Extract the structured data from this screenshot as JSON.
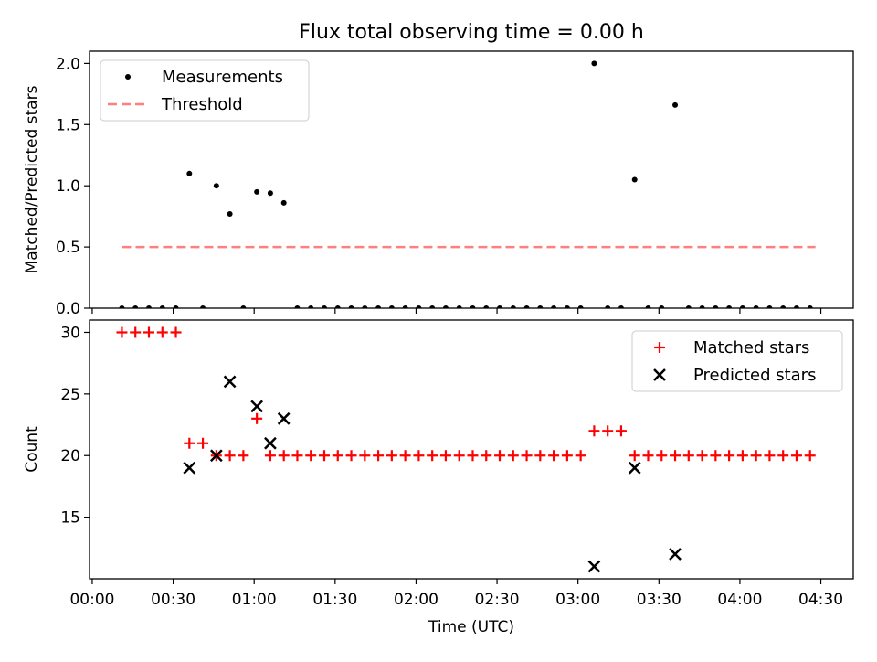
{
  "title": "Flux total observing time = 0.00 h",
  "xlabel": "Time (UTC)",
  "xticks": [
    {
      "label": "00:00",
      "minutes": 0
    },
    {
      "label": "00:30",
      "minutes": 30
    },
    {
      "label": "01:00",
      "minutes": 60
    },
    {
      "label": "01:30",
      "minutes": 90
    },
    {
      "label": "02:00",
      "minutes": 120
    },
    {
      "label": "02:30",
      "minutes": 150
    },
    {
      "label": "03:00",
      "minutes": 180
    },
    {
      "label": "03:30",
      "minutes": 210
    },
    {
      "label": "04:00",
      "minutes": 240
    },
    {
      "label": "04:30",
      "minutes": 270
    }
  ],
  "colors": {
    "measurements": "#000000",
    "threshold": "#ff7f7f",
    "matched": "#ff0000",
    "predicted": "#000000"
  },
  "chart_data": [
    {
      "type": "scatter",
      "ylabel": "Matched/Predicted stars",
      "ylim": [
        0,
        2.1
      ],
      "yticks": [
        0.0,
        0.5,
        1.0,
        1.5,
        2.0
      ],
      "ytick_labels": [
        "0.0",
        "0.5",
        "1.0",
        "1.5",
        "2.0"
      ],
      "xlim": [
        -1,
        282
      ],
      "legend": {
        "placement": "upper-left",
        "entries": [
          "Measurements",
          "Threshold"
        ]
      },
      "threshold": {
        "value": 0.5,
        "x_range": [
          11,
          268
        ]
      },
      "series": [
        {
          "name": "Measurements",
          "x": [
            11,
            16,
            21,
            26,
            31,
            36,
            41,
            46,
            51,
            56,
            61,
            66,
            71,
            76,
            81,
            86,
            91,
            96,
            101,
            106,
            111,
            116,
            121,
            126,
            131,
            136,
            141,
            146,
            151,
            156,
            161,
            166,
            171,
            176,
            181,
            186,
            191,
            196,
            201,
            206,
            211,
            216,
            221,
            226,
            231,
            236,
            241,
            246,
            251,
            256,
            261,
            266
          ],
          "y": [
            0,
            0,
            0,
            0,
            0,
            1.1,
            0,
            1.0,
            0.77,
            0,
            0.95,
            0.94,
            0.86,
            0,
            0,
            0,
            0,
            0,
            0,
            0,
            0,
            0,
            0,
            0,
            0,
            0,
            0,
            0,
            0,
            0,
            0,
            0,
            0,
            0,
            0,
            2.0,
            0,
            0,
            1.05,
            0,
            0,
            1.66,
            0,
            0,
            0,
            0,
            0,
            0,
            0,
            0,
            0,
            0
          ]
        }
      ]
    },
    {
      "type": "scatter",
      "ylabel": "Count",
      "ylim": [
        10,
        31
      ],
      "yticks": [
        15,
        20,
        25,
        30
      ],
      "ytick_labels": [
        "15",
        "20",
        "25",
        "30"
      ],
      "xlim": [
        -1,
        282
      ],
      "legend": {
        "placement": "upper-right",
        "entries": [
          "Matched stars",
          "Predicted stars"
        ]
      },
      "series": [
        {
          "name": "Matched stars",
          "x": [
            11,
            16,
            21,
            26,
            31,
            36,
            41,
            46,
            51,
            56,
            61,
            66,
            71,
            76,
            81,
            86,
            91,
            96,
            101,
            106,
            111,
            116,
            121,
            126,
            131,
            136,
            141,
            146,
            151,
            156,
            161,
            166,
            171,
            176,
            181,
            186,
            191,
            196,
            201,
            206,
            211,
            216,
            221,
            226,
            231,
            236,
            241,
            246,
            251,
            256,
            261,
            266
          ],
          "y": [
            30,
            30,
            30,
            30,
            30,
            21,
            21,
            20,
            20,
            20,
            23,
            20,
            20,
            20,
            20,
            20,
            20,
            20,
            20,
            20,
            20,
            20,
            20,
            20,
            20,
            20,
            20,
            20,
            20,
            20,
            20,
            20,
            20,
            20,
            20,
            22,
            22,
            22,
            20,
            20,
            20,
            20,
            20,
            20,
            20,
            20,
            20,
            20,
            20,
            20,
            20,
            20
          ]
        },
        {
          "name": "Predicted stars",
          "x": [
            36,
            46,
            51,
            61,
            66,
            71,
            186,
            201,
            216
          ],
          "y": [
            19,
            20,
            26,
            24,
            21,
            23,
            11,
            19,
            12
          ]
        }
      ]
    }
  ]
}
